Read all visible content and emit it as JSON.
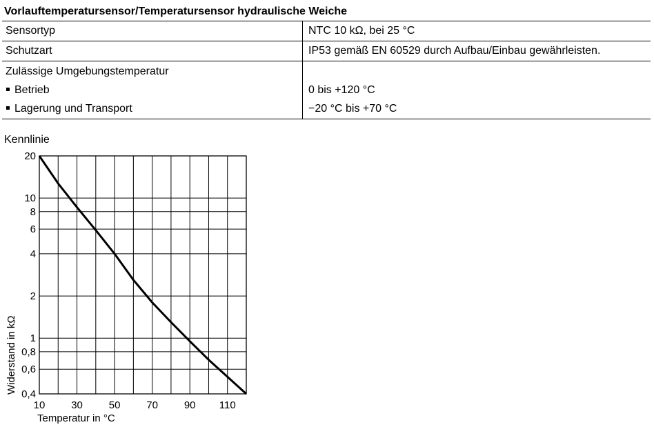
{
  "title": "Vorlauftemperatursensor/Temperatursensor hydraulische Weiche",
  "table": {
    "rows": [
      {
        "label": "Sensortyp",
        "value": "NTC 10 kΩ, bei 25 °C"
      },
      {
        "label": "Schutzart",
        "value": "IP53 gemäß EN 60529 durch Aufbau/Einbau gewährleisten."
      },
      {
        "label": "Zulässige Umgebungstemperatur",
        "value": ""
      },
      {
        "label": "Betrieb",
        "value": "0 bis +120 °C"
      },
      {
        "label": "Lagerung und Transport",
        "value": "−20 °C bis +70 °C"
      }
    ]
  },
  "chart_heading": "Kennlinie",
  "chart_data": {
    "type": "line",
    "title": "Kennlinie",
    "xlabel": "Temperatur in °C",
    "ylabel": "Widerstand in kΩ",
    "xlim": [
      10,
      120
    ],
    "ylim": [
      0.4,
      20
    ],
    "yscale": "log",
    "grid": true,
    "x_ticks": [
      10,
      30,
      50,
      70,
      90,
      110
    ],
    "x_tick_labels": [
      "10",
      "30",
      "50",
      "70",
      "90",
      "110"
    ],
    "x_gridlines": [
      10,
      20,
      30,
      40,
      50,
      60,
      70,
      80,
      90,
      100,
      110,
      120
    ],
    "y_ticks": [
      20,
      10,
      8,
      6,
      4,
      2,
      1,
      0.8,
      0.6,
      0.4
    ],
    "y_tick_labels": [
      "20",
      "10",
      "8",
      "6",
      "4",
      "2",
      "1",
      "0,8",
      "0,6",
      "0,4"
    ],
    "series": [
      {
        "x": [
          10,
          20,
          30,
          40,
          50,
          60,
          70,
          80,
          90,
          100,
          110,
          120
        ],
        "y": [
          20,
          12.7,
          8.6,
          5.9,
          4.0,
          2.6,
          1.8,
          1.3,
          0.95,
          0.7,
          0.53,
          0.4
        ]
      }
    ]
  }
}
